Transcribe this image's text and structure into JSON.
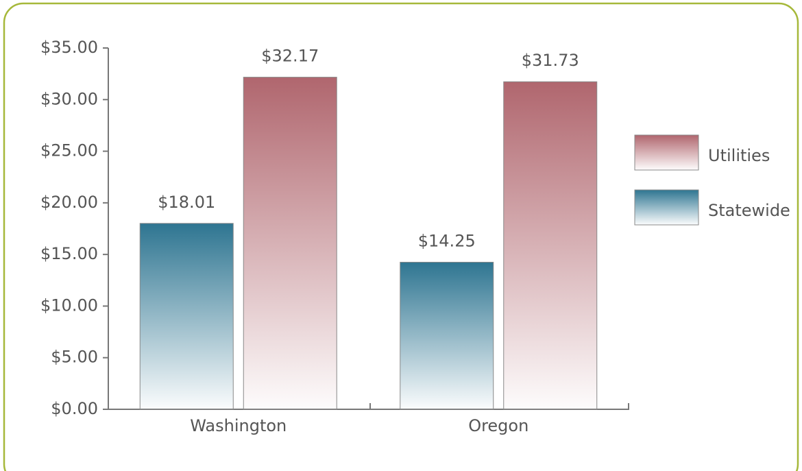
{
  "chart_data": {
    "type": "bar",
    "categories": [
      "Washington",
      "Oregon"
    ],
    "series": [
      {
        "name": "Statewide",
        "color": "#2e7591",
        "values": [
          18.01,
          14.25
        ],
        "value_labels": [
          "$18.01",
          "$14.25"
        ]
      },
      {
        "name": "Utilities",
        "color": "#b0666e",
        "values": [
          32.17,
          31.73
        ],
        "value_labels": [
          "$32.17",
          "$31.73"
        ]
      }
    ],
    "ylim": [
      0,
      35
    ],
    "yticks": [
      {
        "value": 0,
        "label": "$0.00"
      },
      {
        "value": 5,
        "label": "$5.00"
      },
      {
        "value": 10,
        "label": "$10.00"
      },
      {
        "value": 15,
        "label": "$15.00"
      },
      {
        "value": 20,
        "label": "$20.00"
      },
      {
        "value": 25,
        "label": "$25.00"
      },
      {
        "value": 30,
        "label": "$30.00"
      },
      {
        "value": 35,
        "label": "$35.00"
      }
    ],
    "legend": "right"
  }
}
